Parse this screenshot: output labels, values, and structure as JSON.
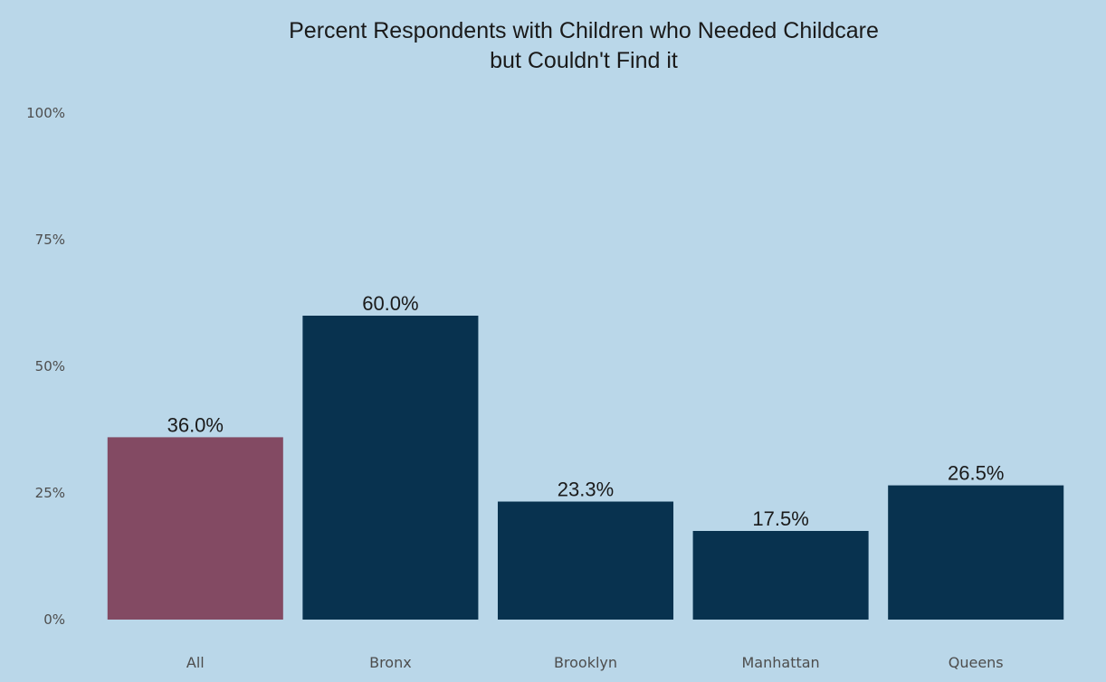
{
  "chart_data": {
    "type": "bar",
    "title": "Percent Respondents with Children who Needed Childcare",
    "subtitle": "but Couldn't Find it",
    "categories": [
      "All",
      "Bronx",
      "Brooklyn",
      "Manhattan",
      "Queens"
    ],
    "values": [
      36.0,
      60.0,
      23.3,
      17.5,
      26.5
    ],
    "value_labels": [
      "36.0%",
      "60.0%",
      "23.3%",
      "17.5%",
      "26.5%"
    ],
    "bar_colors": [
      "#834a63",
      "#08324f",
      "#08324f",
      "#08324f",
      "#08324f"
    ],
    "ylim": [
      0,
      100
    ],
    "yticks": [
      0,
      25,
      50,
      75,
      100
    ],
    "ytick_labels": [
      "0%",
      "25%",
      "50%",
      "75%",
      "100%"
    ],
    "xlabel": "",
    "ylabel": "",
    "grid": false,
    "legend": "none",
    "background_color": "#bad7e9"
  }
}
